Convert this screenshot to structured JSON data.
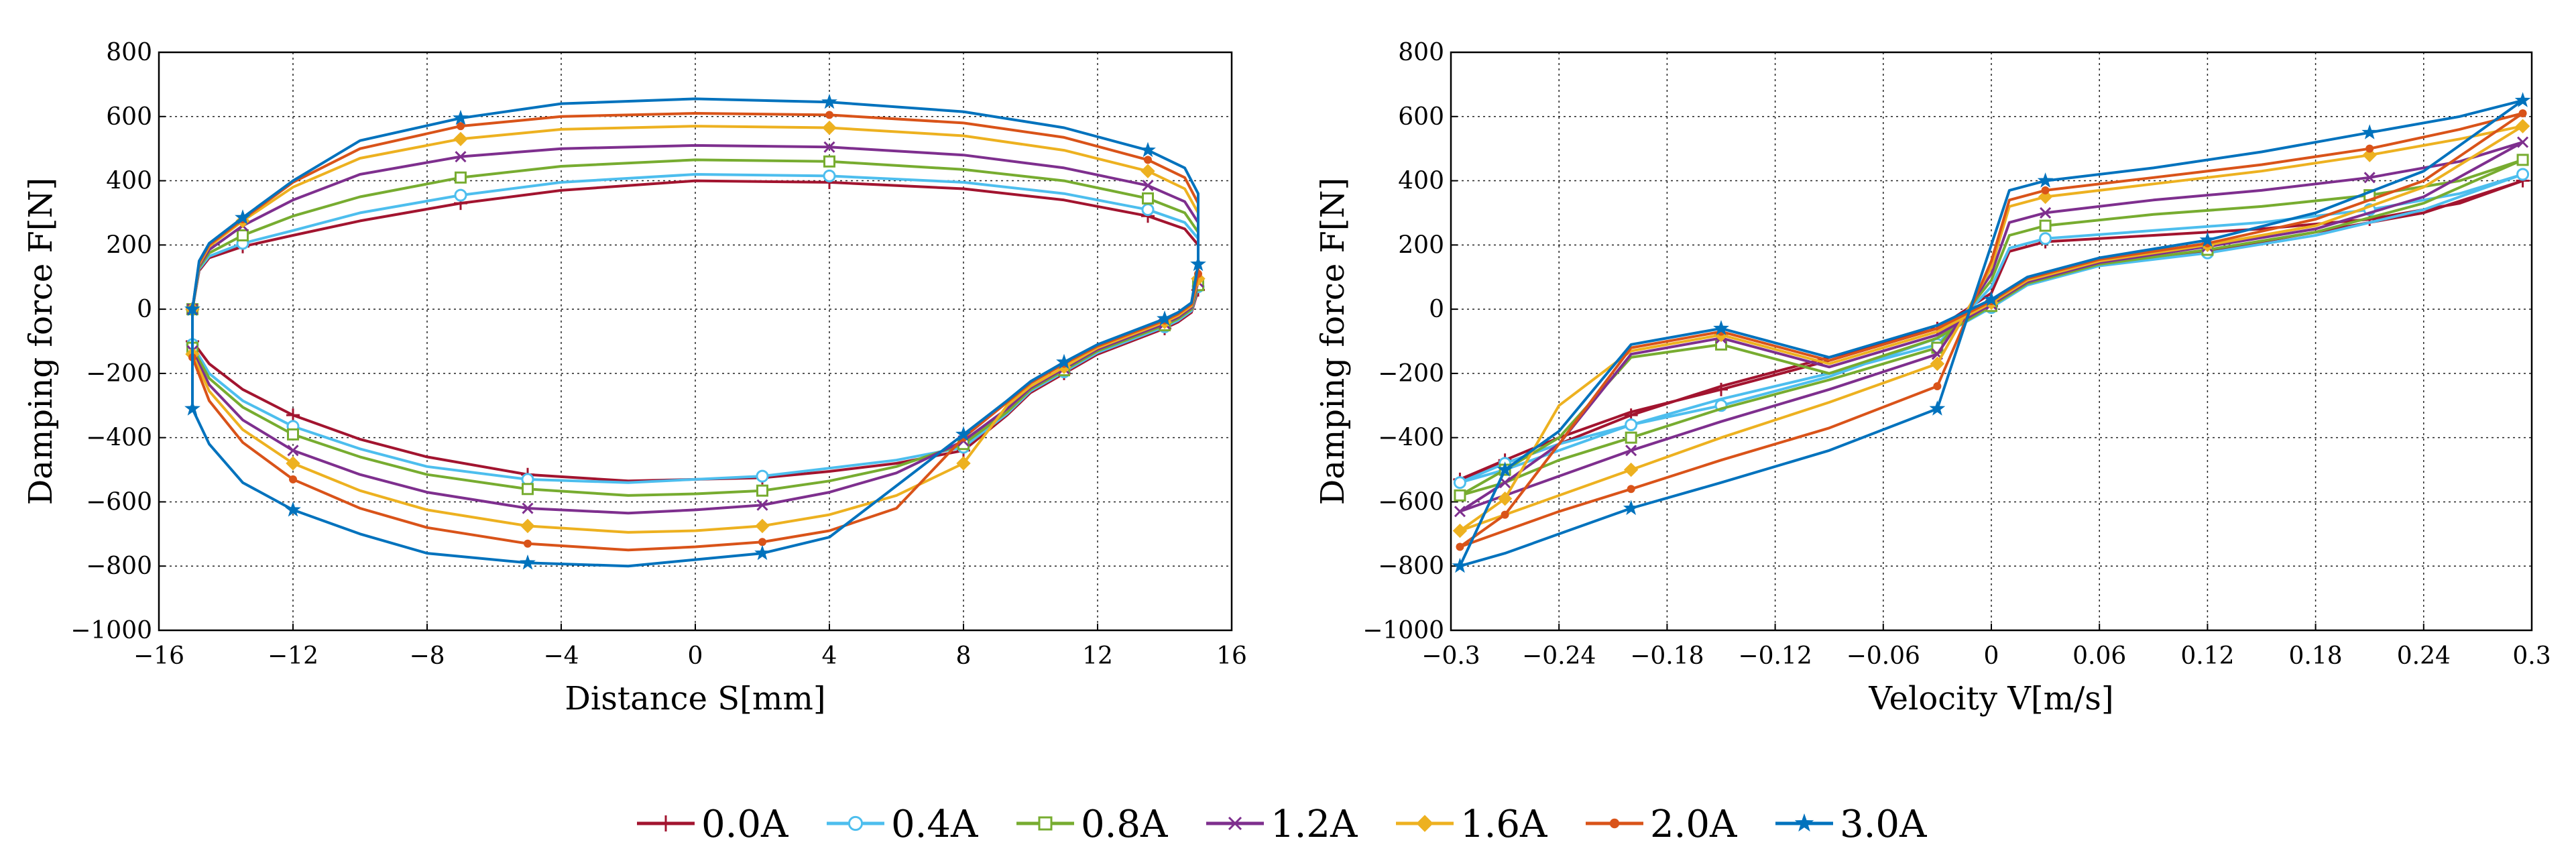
{
  "legend": [
    {
      "label": "0.0A",
      "color": "#A2142F",
      "marker": "plus"
    },
    {
      "label": "0.4A",
      "color": "#4DBEEE",
      "marker": "circle"
    },
    {
      "label": "0.8A",
      "color": "#77AC30",
      "marker": "square"
    },
    {
      "label": "1.2A",
      "color": "#7E2F8E",
      "marker": "x"
    },
    {
      "label": "1.6A",
      "color": "#EDB120",
      "marker": "diamond"
    },
    {
      "label": "2.0A",
      "color": "#D95319",
      "marker": "dot"
    },
    {
      "label": "3.0A",
      "color": "#0072BD",
      "marker": "star"
    }
  ],
  "chart_data": [
    {
      "type": "line",
      "subtype": "hysteresis-loop",
      "xlabel": "Distance S[mm]",
      "ylabel": "Damping force F[N]",
      "xlim": [
        -16,
        16
      ],
      "ylim": [
        -1000,
        800
      ],
      "xticks": [
        "−16",
        "−12",
        "−8",
        "−4",
        "0",
        "4",
        "8",
        "12",
        "16"
      ],
      "yticks": [
        "−1000",
        "−800",
        "−600",
        "−400",
        "−200",
        "0",
        "200",
        "400",
        "600",
        "800"
      ],
      "grid": true,
      "series": [
        {
          "name": "0.0A",
          "x": [
            -15,
            -14.8,
            -14.5,
            -13.5,
            -12,
            -10,
            -7,
            -4,
            0,
            4,
            8,
            11,
            13.5,
            14.6,
            15,
            15,
            14.8,
            14.4,
            14,
            13,
            12,
            11,
            10,
            9.3,
            8,
            6,
            4,
            2,
            0,
            -2,
            -5,
            -8,
            -10,
            -12,
            -13.5,
            -14.5,
            -15,
            -15
          ],
          "y": [
            0,
            120,
            160,
            195,
            230,
            275,
            330,
            370,
            400,
            395,
            375,
            340,
            290,
            250,
            200,
            60,
            -10,
            -40,
            -60,
            -100,
            -140,
            -200,
            -260,
            -330,
            -440,
            -480,
            -505,
            -525,
            -530,
            -535,
            -515,
            -460,
            -405,
            -330,
            -250,
            -170,
            -100,
            0
          ]
        },
        {
          "name": "0.4A",
          "x": [
            -15,
            -14.8,
            -14.5,
            -13.5,
            -12,
            -10,
            -7,
            -4,
            0,
            4,
            8,
            11,
            13.5,
            14.6,
            15,
            15,
            14.8,
            14.4,
            14,
            13,
            12,
            11,
            10,
            9.3,
            8,
            6,
            4,
            2,
            0,
            -2,
            -5,
            -8,
            -10,
            -12,
            -13.5,
            -14.5,
            -15,
            -15
          ],
          "y": [
            0,
            125,
            165,
            205,
            245,
            300,
            355,
            395,
            420,
            415,
            395,
            360,
            310,
            270,
            220,
            70,
            -5,
            -35,
            -55,
            -95,
            -135,
            -195,
            -255,
            -325,
            -430,
            -470,
            -495,
            -520,
            -530,
            -540,
            -530,
            -490,
            -435,
            -365,
            -285,
            -200,
            -110,
            0
          ]
        },
        {
          "name": "0.8A",
          "x": [
            -15,
            -14.8,
            -14.5,
            -13.5,
            -12,
            -10,
            -7,
            -4,
            0,
            4,
            8,
            11,
            13.5,
            14.6,
            15,
            15,
            14.8,
            14.4,
            14,
            13,
            12,
            11,
            10,
            9.3,
            8,
            6,
            4,
            2,
            0,
            -2,
            -5,
            -8,
            -10,
            -12,
            -13.5,
            -14.5,
            -15,
            -15
          ],
          "y": [
            0,
            130,
            175,
            230,
            290,
            350,
            410,
            445,
            465,
            460,
            435,
            400,
            345,
            300,
            240,
            75,
            0,
            -30,
            -50,
            -90,
            -130,
            -190,
            -250,
            -320,
            -420,
            -490,
            -535,
            -565,
            -575,
            -580,
            -560,
            -515,
            -460,
            -390,
            -305,
            -215,
            -120,
            0
          ]
        },
        {
          "name": "1.2A",
          "x": [
            -15,
            -14.8,
            -14.5,
            -13.5,
            -12,
            -10,
            -7,
            -4,
            0,
            4,
            8,
            11,
            13.5,
            14.6,
            15,
            15,
            14.8,
            14.4,
            14,
            13,
            12,
            11,
            10,
            9.3,
            8,
            6,
            4,
            2,
            0,
            -2,
            -5,
            -8,
            -10,
            -12,
            -13.5,
            -14.5,
            -15,
            -15
          ],
          "y": [
            0,
            135,
            185,
            260,
            340,
            420,
            475,
            500,
            510,
            505,
            480,
            440,
            385,
            335,
            270,
            85,
            5,
            -25,
            -45,
            -85,
            -125,
            -185,
            -245,
            -310,
            -410,
            -510,
            -570,
            -610,
            -625,
            -635,
            -620,
            -570,
            -515,
            -440,
            -345,
            -235,
            -130,
            0
          ]
        },
        {
          "name": "1.6A",
          "x": [
            -15,
            -14.8,
            -14.5,
            -13.5,
            -12,
            -10,
            -7,
            -4,
            0,
            4,
            8,
            11,
            13.5,
            14.6,
            15,
            15,
            14.8,
            14.4,
            14,
            13,
            12,
            11,
            10,
            9.3,
            8,
            6,
            4,
            2,
            0,
            -2,
            -5,
            -8,
            -10,
            -12,
            -13.5,
            -14.5,
            -15,
            -15
          ],
          "y": [
            0,
            140,
            195,
            275,
            380,
            470,
            530,
            560,
            570,
            565,
            540,
            495,
            430,
            375,
            300,
            95,
            10,
            -20,
            -40,
            -80,
            -120,
            -180,
            -240,
            -300,
            -480,
            -580,
            -640,
            -675,
            -690,
            -695,
            -675,
            -625,
            -565,
            -480,
            -375,
            -255,
            -140,
            0
          ]
        },
        {
          "name": "2.0A",
          "x": [
            -15,
            -14.8,
            -14.5,
            -13.5,
            -12,
            -10,
            -7,
            -4,
            0,
            4,
            8,
            11,
            13.5,
            14.6,
            15,
            15,
            14.8,
            14.4,
            14,
            13,
            12,
            11,
            10,
            9.3,
            8,
            6,
            4,
            2,
            0,
            -2,
            -5,
            -8,
            -10,
            -12,
            -13.5,
            -14.5,
            -15,
            -15
          ],
          "y": [
            0,
            145,
            200,
            280,
            395,
            500,
            570,
            600,
            610,
            605,
            580,
            535,
            465,
            410,
            330,
            110,
            15,
            -15,
            -35,
            -75,
            -115,
            -170,
            -230,
            -290,
            -400,
            -620,
            -690,
            -725,
            -740,
            -750,
            -730,
            -680,
            -620,
            -530,
            -415,
            -285,
            -150,
            0
          ]
        },
        {
          "name": "3.0A",
          "x": [
            -15,
            -14.8,
            -14.5,
            -13.5,
            -12,
            -10,
            -7,
            -4,
            0,
            4,
            8,
            11,
            13.5,
            14.6,
            15,
            15,
            14.8,
            14.4,
            14,
            13,
            12,
            11,
            10,
            9.3,
            8,
            6,
            4,
            2,
            0,
            -2,
            -5,
            -8,
            -10,
            -12,
            -13.5,
            -14.5,
            -15,
            -15
          ],
          "y": [
            0,
            150,
            205,
            285,
            400,
            525,
            595,
            640,
            655,
            645,
            615,
            565,
            495,
            440,
            360,
            140,
            20,
            -10,
            -30,
            -70,
            -110,
            -165,
            -225,
            -285,
            -390,
            -550,
            -710,
            -760,
            -780,
            -800,
            -790,
            -760,
            -700,
            -625,
            -540,
            -420,
            -310,
            0
          ]
        }
      ]
    },
    {
      "type": "line",
      "subtype": "hysteresis-loop",
      "xlabel": "Velocity V[m/s]",
      "ylabel": "Damping force F[N]",
      "xlim": [
        -0.3,
        0.3
      ],
      "ylim": [
        -1000,
        800
      ],
      "xticks": [
        "−0.3",
        "−0.24",
        "−0.18",
        "−0.12",
        "−0.06",
        "0",
        "0.06",
        "0.12",
        "0.18",
        "0.24",
        "0.3"
      ],
      "yticks": [
        "−1000",
        "−800",
        "−600",
        "−400",
        "−200",
        "0",
        "200",
        "400",
        "600",
        "800"
      ],
      "grid": true,
      "series": [
        {
          "name": "0.0A",
          "x": [
            -0.295,
            -0.27,
            -0.24,
            -0.2,
            -0.15,
            -0.09,
            -0.03,
            0,
            0.01,
            0.03,
            0.09,
            0.15,
            0.21,
            0.26,
            0.295,
            0.295,
            0.24,
            0.18,
            0.12,
            0.06,
            0.02,
            0,
            -0.03,
            -0.09,
            -0.15,
            -0.2,
            -0.24,
            -0.27,
            -0.295
          ],
          "y": [
            -530,
            -480,
            -420,
            -330,
            -240,
            -150,
            -60,
            50,
            180,
            210,
            230,
            250,
            280,
            330,
            400,
            400,
            300,
            240,
            180,
            140,
            80,
            10,
            -60,
            -160,
            -250,
            -320,
            -400,
            -470,
            -530
          ]
        },
        {
          "name": "0.4A",
          "x": [
            -0.295,
            -0.27,
            -0.24,
            -0.2,
            -0.15,
            -0.09,
            -0.03,
            0,
            0.01,
            0.03,
            0.09,
            0.15,
            0.21,
            0.26,
            0.295,
            0.295,
            0.24,
            0.18,
            0.12,
            0.06,
            0.02,
            0,
            -0.03,
            -0.09,
            -0.15,
            -0.2,
            -0.24,
            -0.27,
            -0.295
          ],
          "y": [
            -540,
            -500,
            -440,
            -360,
            -280,
            -200,
            -110,
            70,
            190,
            220,
            245,
            270,
            310,
            360,
            420,
            420,
            310,
            230,
            175,
            135,
            75,
            5,
            -90,
            -210,
            -300,
            -360,
            -420,
            -480,
            -540
          ]
        },
        {
          "name": "0.8A",
          "x": [
            -0.295,
            -0.27,
            -0.24,
            -0.2,
            -0.15,
            -0.09,
            -0.03,
            0,
            0.01,
            0.03,
            0.09,
            0.15,
            0.21,
            0.26,
            0.295,
            0.295,
            0.24,
            0.18,
            0.12,
            0.06,
            0.02,
            0,
            -0.03,
            -0.09,
            -0.15,
            -0.2,
            -0.24,
            -0.27,
            -0.295
          ],
          "y": [
            -580,
            -540,
            -470,
            -400,
            -310,
            -220,
            -120,
            90,
            230,
            260,
            295,
            320,
            355,
            400,
            465,
            465,
            330,
            240,
            185,
            140,
            80,
            10,
            -90,
            -200,
            -110,
            -150,
            -400,
            -500,
            -580
          ]
        },
        {
          "name": "1.2A",
          "x": [
            -0.295,
            -0.27,
            -0.24,
            -0.2,
            -0.15,
            -0.09,
            -0.03,
            0,
            0.01,
            0.03,
            0.09,
            0.15,
            0.21,
            0.26,
            0.295,
            0.295,
            0.24,
            0.18,
            0.12,
            0.06,
            0.02,
            0,
            -0.03,
            -0.09,
            -0.15,
            -0.2,
            -0.24,
            -0.27,
            -0.295
          ],
          "y": [
            -630,
            -580,
            -520,
            -440,
            -350,
            -250,
            -140,
            110,
            270,
            300,
            340,
            370,
            410,
            460,
            520,
            520,
            350,
            250,
            195,
            145,
            85,
            15,
            -80,
            -180,
            -90,
            -140,
            -420,
            -540,
            -630
          ]
        },
        {
          "name": "1.6A",
          "x": [
            -0.295,
            -0.27,
            -0.24,
            -0.2,
            -0.15,
            -0.09,
            -0.03,
            0,
            0.01,
            0.03,
            0.09,
            0.15,
            0.21,
            0.26,
            0.295,
            0.295,
            0.24,
            0.18,
            0.12,
            0.06,
            0.02,
            0,
            -0.03,
            -0.09,
            -0.15,
            -0.2,
            -0.24,
            -0.27,
            -0.295
          ],
          "y": [
            -690,
            -640,
            -580,
            -500,
            -400,
            -290,
            -170,
            130,
            320,
            350,
            390,
            430,
            480,
            530,
            570,
            570,
            380,
            260,
            200,
            150,
            90,
            20,
            -70,
            -170,
            -80,
            -130,
            -300,
            -590,
            -690
          ]
        },
        {
          "name": "2.0A",
          "x": [
            -0.295,
            -0.27,
            -0.24,
            -0.2,
            -0.15,
            -0.09,
            -0.03,
            0,
            0.01,
            0.03,
            0.09,
            0.15,
            0.21,
            0.26,
            0.295,
            0.295,
            0.24,
            0.18,
            0.12,
            0.06,
            0.02,
            0,
            -0.03,
            -0.09,
            -0.15,
            -0.2,
            -0.24,
            -0.27,
            -0.295
          ],
          "y": [
            -740,
            -690,
            -630,
            -560,
            -470,
            -370,
            -240,
            150,
            340,
            370,
            410,
            450,
            500,
            560,
            610,
            610,
            400,
            280,
            205,
            155,
            95,
            25,
            -60,
            -160,
            -70,
            -120,
            -420,
            -640,
            -740
          ]
        },
        {
          "name": "3.0A",
          "x": [
            -0.295,
            -0.27,
            -0.24,
            -0.2,
            -0.15,
            -0.09,
            -0.03,
            0,
            0.01,
            0.03,
            0.09,
            0.15,
            0.21,
            0.26,
            0.295,
            0.295,
            0.24,
            0.18,
            0.12,
            0.06,
            0.02,
            0,
            -0.03,
            -0.09,
            -0.15,
            -0.2,
            -0.24,
            -0.27,
            -0.295
          ],
          "y": [
            -800,
            -760,
            -700,
            -620,
            -540,
            -440,
            -310,
            200,
            370,
            400,
            440,
            490,
            550,
            600,
            650,
            650,
            430,
            300,
            215,
            160,
            100,
            30,
            -50,
            -150,
            -60,
            -110,
            -380,
            -500,
            -800
          ]
        }
      ]
    }
  ]
}
